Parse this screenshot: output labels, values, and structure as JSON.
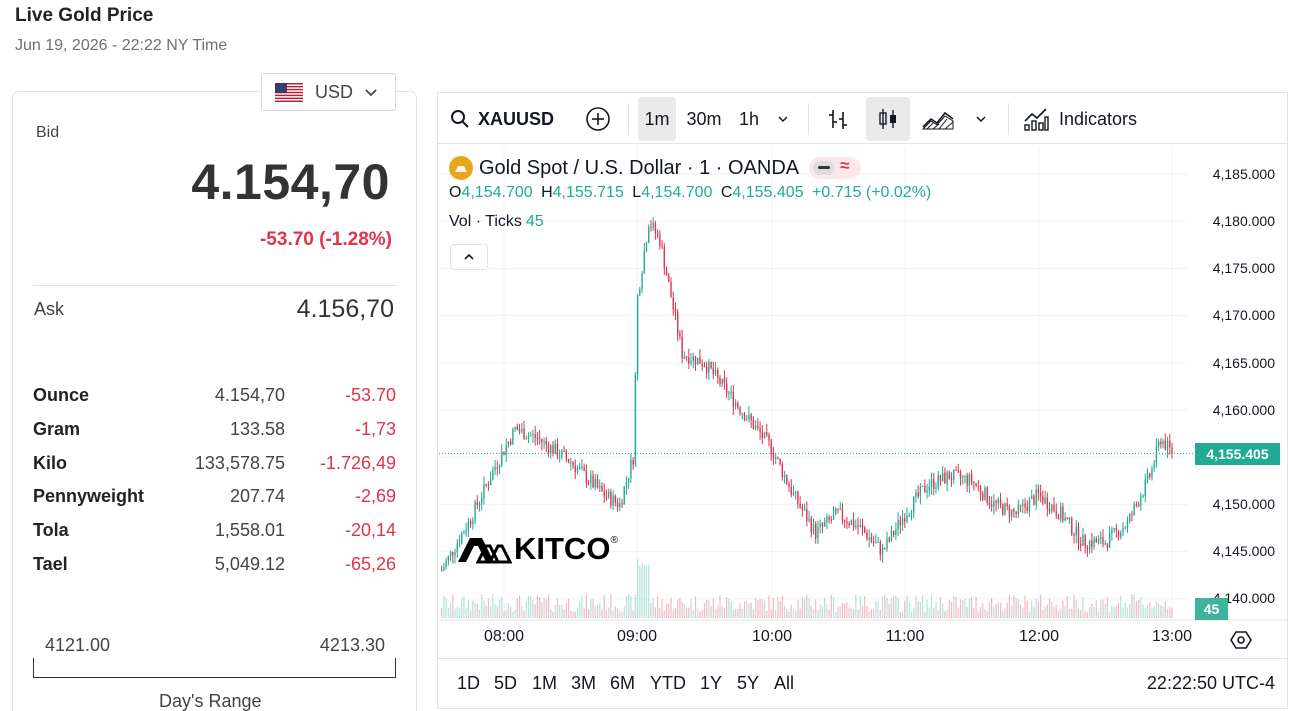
{
  "page": {
    "title": "Live Gold Price",
    "timestamp": "Jun 19, 2026 - 22:22 NY Time"
  },
  "currency": {
    "selected": "USD",
    "flag_icon": "us-flag-icon"
  },
  "bid": {
    "label": "Bid",
    "value": "4.154,70",
    "change": "-53.70 (-1.28%)"
  },
  "ask": {
    "label": "Ask",
    "value": "4.156,70"
  },
  "units": [
    {
      "name": "Ounce",
      "price": "4.154,70",
      "change": "-53.70"
    },
    {
      "name": "Gram",
      "price": "133.58",
      "change": "-1,73"
    },
    {
      "name": "Kilo",
      "price": "133,578.75",
      "change": "-1.726,49"
    },
    {
      "name": "Pennyweight",
      "price": "207.74",
      "change": "-2,69"
    },
    {
      "name": "Tola",
      "price": "1,558.01",
      "change": "-20,14"
    },
    {
      "name": "Tael",
      "price": "5,049.12",
      "change": "-65,26"
    }
  ],
  "day_range": {
    "low": "4121.00",
    "high": "4213.30",
    "caption": "Day's Range"
  },
  "toolbar": {
    "symbol": "XAUUSD",
    "intervals": [
      "1m",
      "30m",
      "1h"
    ],
    "active_interval": "1m",
    "indicators_label": "Indicators"
  },
  "legend": {
    "title": "Gold Spot / U.S. Dollar · 1 · OANDA",
    "o_key": "O",
    "o_val": "4,154.700",
    "h_key": "H",
    "h_val": "4,155.715",
    "l_key": "L",
    "l_val": "4,154.700",
    "c_key": "C",
    "c_val": "4,155.405",
    "change": "+0.715 (+0.02%)",
    "vol_label": "Vol · Ticks",
    "vol_value": "45"
  },
  "price_axis": [
    "4,185.000",
    "4,180.000",
    "4,175.000",
    "4,170.000",
    "4,165.000",
    "4,160.000",
    "4,150.000",
    "4,145.000",
    "4,140.000"
  ],
  "last_price": "4,155.405",
  "volume_badge": "45",
  "time_axis": [
    "08:00",
    "09:00",
    "10:00",
    "11:00",
    "12:00",
    "13:00"
  ],
  "ranges": [
    "1D",
    "5D",
    "1M",
    "3M",
    "6M",
    "YTD",
    "1Y",
    "5Y",
    "All"
  ],
  "clock": "22:22:50 UTC-4",
  "watermark": "KITCO",
  "colors": {
    "up": "#22ab94",
    "down": "#e0344b",
    "gold": "#e7a71c"
  },
  "chart_data": {
    "type": "line",
    "title": "Gold Spot / U.S. Dollar · 1 · OANDA",
    "xlabel": "",
    "ylabel": "",
    "ylim": [
      4138.5,
      4187.5
    ],
    "x": [
      "07:32",
      "07:45",
      "07:56",
      "08:05",
      "08:15",
      "08:30",
      "08:45",
      "08:52",
      "08:58",
      "09:00",
      "09:05",
      "09:10",
      "09:20",
      "09:30",
      "09:40",
      "09:50",
      "10:00",
      "10:10",
      "10:20",
      "10:30",
      "10:40",
      "10:50",
      "11:00",
      "11:10",
      "11:20",
      "11:30",
      "11:40",
      "11:50",
      "12:00",
      "12:10",
      "12:20",
      "12:30",
      "12:40",
      "12:45",
      "12:50",
      "12:55",
      "13:00"
    ],
    "series": [
      {
        "values": [
          4143.0,
          4148.5,
          4154.0,
          4158.0,
          4157.0,
          4154.5,
          4151.0,
          4150.0,
          4155.0,
          4172.0,
          4180.0,
          4178.0,
          4166.0,
          4165.0,
          4162.0,
          4159.0,
          4156.0,
          4151.0,
          4147.0,
          4149.0,
          4147.5,
          4145.0,
          4149.0,
          4152.0,
          4153.0,
          4152.5,
          4150.0,
          4149.0,
          4151.0,
          4149.0,
          4146.0,
          4146.0,
          4148.0,
          4150.5,
          4153.0,
          4157.0,
          4155.4
        ]
      }
    ],
    "volume_last": 45
  }
}
